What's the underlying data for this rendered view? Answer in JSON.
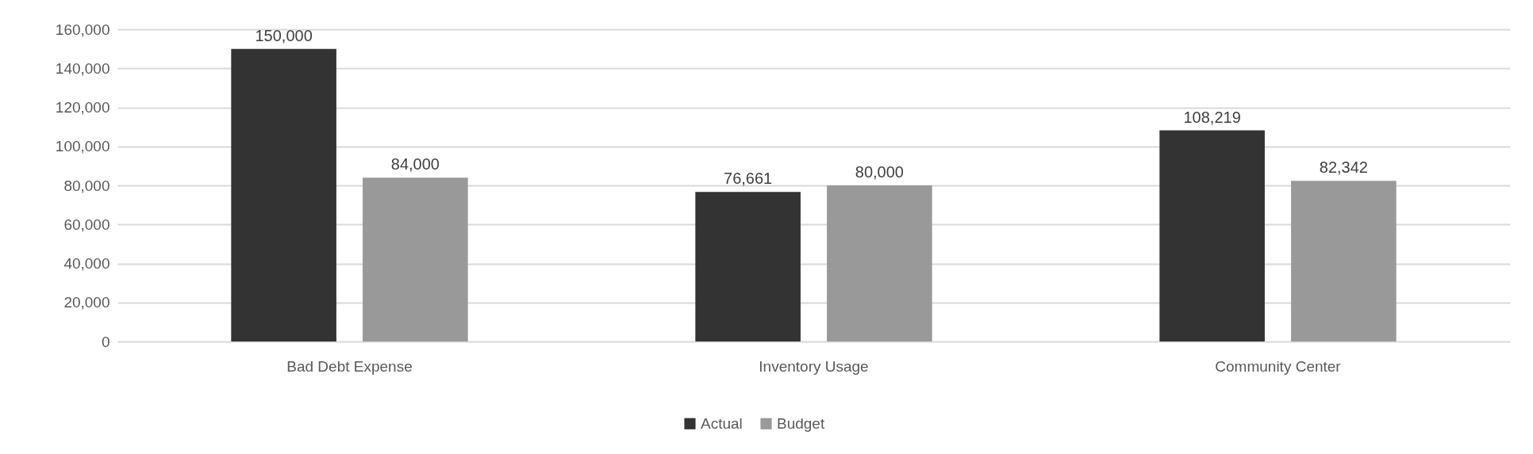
{
  "chart_data": {
    "type": "bar",
    "categories": [
      "Bad Debt Expense",
      "Inventory Usage",
      "Community Center"
    ],
    "series": [
      {
        "name": "Actual",
        "color": "#333333",
        "values": [
          150000,
          76661,
          108219
        ],
        "value_labels": [
          "150,000",
          "76,661",
          "108,219"
        ]
      },
      {
        "name": "Budget",
        "color": "#999999",
        "values": [
          84000,
          80000,
          82342
        ],
        "value_labels": [
          "84,000",
          "80,000",
          "82,342"
        ]
      }
    ],
    "ylim": [
      0,
      160000
    ],
    "yticks": [
      0,
      {
        "value": 20000,
        "label": "20,000"
      },
      {
        "value": 40000,
        "label": "40,000"
      },
      {
        "value": 60000,
        "label": "60,000"
      },
      {
        "value": 80000,
        "label": "80,000"
      },
      {
        "value": 100000,
        "label": "100,000"
      },
      {
        "value": 120000,
        "label": "120,000"
      },
      {
        "value": 140000,
        "label": "140,000"
      },
      {
        "value": 160000,
        "label": "160,000"
      }
    ],
    "grid": "y",
    "legend": "bottom"
  }
}
